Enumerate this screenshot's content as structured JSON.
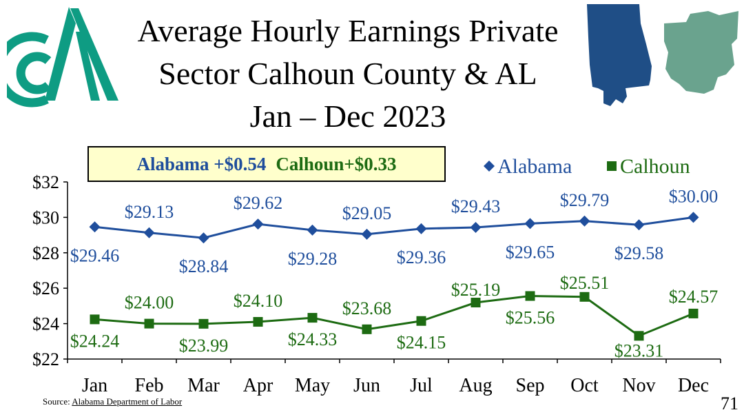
{
  "title_lines": [
    "Average Hourly Earnings Private",
    "Sector Calhoun County & AL",
    "Jan – Dec 2023"
  ],
  "change_box": {
    "alabama": "Alabama +$0.54",
    "calhoun": "Calhoun+$0.33"
  },
  "source": {
    "label": "Source:",
    "link": "Alabama Department of Labor"
  },
  "page_number": "71",
  "colors": {
    "alabama": "#1f4e9c",
    "calhoun": "#1d6b12",
    "logo": "#0e9c83",
    "al_map": "#1f4e86",
    "calhoun_map": "#6aa38e",
    "box_fill": "#ffffcc"
  },
  "chart_data": {
    "type": "line",
    "categories": [
      "Jan",
      "Feb",
      "Mar",
      "Apr",
      "May",
      "Jun",
      "Jul",
      "Aug",
      "Sep",
      "Oct",
      "Nov",
      "Dec"
    ],
    "ylim": [
      22,
      32
    ],
    "yticks": [
      22,
      24,
      26,
      28,
      30,
      32
    ],
    "ytick_labels": [
      "$22",
      "$24",
      "$26",
      "$28",
      "$30",
      "$32"
    ],
    "legend_position": "top-right",
    "series": [
      {
        "name": "Alabama",
        "marker": "diamond",
        "color": "#1f4e9c",
        "values": [
          29.46,
          29.13,
          28.84,
          29.62,
          29.28,
          29.05,
          29.36,
          29.43,
          29.65,
          29.79,
          29.58,
          30.0
        ],
        "labels": [
          "$29.46",
          "$29.13",
          "$28.84",
          "$29.62",
          "$29.28",
          "$29.05",
          "$29.36",
          "$29.43",
          "$29.65",
          "$29.79",
          "$29.58",
          "$30.00"
        ]
      },
      {
        "name": "Calhoun",
        "marker": "square",
        "color": "#1d6b12",
        "values": [
          24.24,
          24.0,
          23.99,
          24.1,
          24.33,
          23.68,
          24.15,
          25.19,
          25.56,
          25.51,
          23.31,
          24.57
        ],
        "labels": [
          "$24.24",
          "$24.00",
          "$23.99",
          "$24.10",
          "$24.33",
          "$23.68",
          "$24.15",
          "$25.19",
          "$25.56",
          "$25.51",
          "$23.31",
          "$24.57"
        ]
      }
    ]
  }
}
